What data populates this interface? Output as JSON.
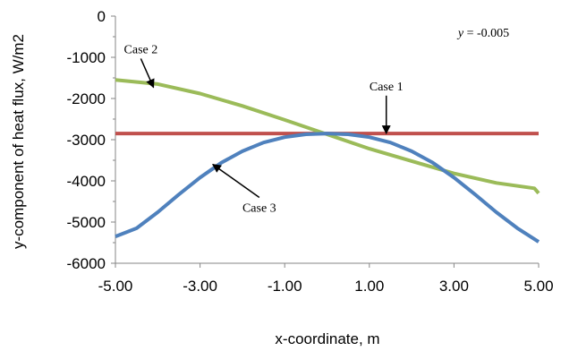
{
  "chart_data": {
    "type": "line",
    "title": "",
    "xlabel": "x-coordinate, m",
    "ylabel": "y-component of heat flux, W/m2",
    "xlim": [
      -5,
      5
    ],
    "ylim": [
      -6000,
      0
    ],
    "x_ticks": [
      "-5.00",
      "-3.00",
      "-1.00",
      "1.00",
      "3.00",
      "5.00"
    ],
    "y_ticks": [
      "0",
      "-1000",
      "-2000",
      "-3000",
      "-4000",
      "-5000",
      "-6000"
    ],
    "grid": false,
    "legend": "none",
    "series": [
      {
        "name": "Case 1",
        "color": "#c0504d",
        "x": [
          -5,
          5
        ],
        "y": [
          -2850,
          -2850
        ]
      },
      {
        "name": "Case 2",
        "color": "#9bbb59",
        "x": [
          -5,
          -4,
          -3,
          -2,
          -1,
          0,
          1,
          2,
          3,
          4,
          4.9,
          5
        ],
        "y": [
          -1550,
          -1650,
          -1880,
          -2180,
          -2520,
          -2870,
          -3220,
          -3520,
          -3820,
          -4050,
          -4180,
          -4300
        ]
      },
      {
        "name": "Case 3",
        "color": "#4f81bd",
        "x": [
          -5,
          -4.5,
          -4,
          -3.5,
          -3,
          -2.5,
          -2,
          -1.5,
          -1,
          -0.5,
          0,
          0.5,
          1,
          1.5,
          2,
          2.5,
          3,
          3.5,
          4,
          4.5,
          5
        ],
        "y": [
          -5350,
          -5150,
          -4760,
          -4330,
          -3920,
          -3560,
          -3280,
          -3070,
          -2940,
          -2870,
          -2850,
          -2870,
          -2940,
          -3070,
          -3280,
          -3560,
          -3920,
          -4330,
          -4760,
          -5150,
          -5480
        ]
      }
    ],
    "annotations": [
      {
        "text": "Case 1",
        "series": "Case 1",
        "label_at": [
          1.4,
          -1800
        ],
        "arrow_to": [
          1.4,
          -2850
        ]
      },
      {
        "text": "Case 2",
        "series": "Case 2",
        "label_at": [
          -4.4,
          -900
        ],
        "arrow_to": [
          -4.1,
          -1730
        ]
      },
      {
        "text": "Case 3",
        "series": "Case 3",
        "label_at": [
          -1.6,
          -4750
        ],
        "arrow_to": [
          -2.7,
          -3600
        ]
      },
      {
        "text_italic": "y",
        "text": " = -0.005",
        "label_at": [
          3.7,
          -500
        ]
      }
    ]
  }
}
